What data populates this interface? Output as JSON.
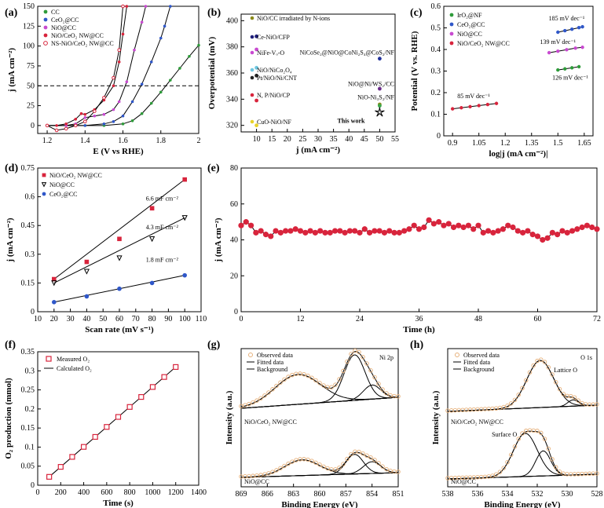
{
  "chart_data": [
    {
      "id": "a",
      "type": "line",
      "panel_label": "(a)",
      "xlabel": "E (V vs RHE)",
      "ylabel": "j (mA cm⁻²)",
      "xlim": [
        1.15,
        2.0
      ],
      "ylim": [
        -10,
        150
      ],
      "xticks": [
        1.2,
        1.4,
        1.6,
        1.8,
        2.0
      ],
      "yticks": [
        0,
        25,
        50,
        75,
        100,
        125,
        150
      ],
      "reference_line": {
        "y": 50,
        "style": "dashed",
        "color": "#3b3bd0"
      },
      "legend_position": "top-left",
      "series": [
        {
          "name": "CC",
          "color": "#2e9b3a",
          "marker": "filled-circle",
          "x": [
            1.2,
            1.3,
            1.4,
            1.5,
            1.6,
            1.65,
            1.7,
            1.75,
            1.8,
            1.85,
            1.9,
            1.95,
            2.0
          ],
          "y": [
            0,
            0,
            0,
            0,
            2,
            6,
            15,
            28,
            42,
            57,
            72,
            87,
            101
          ]
        },
        {
          "name": "CeO₂@CC",
          "color": "#2f57c9",
          "marker": "filled-circle",
          "x": [
            1.2,
            1.3,
            1.4,
            1.5,
            1.55,
            1.6,
            1.65,
            1.7,
            1.75,
            1.8,
            1.82,
            1.85
          ],
          "y": [
            0,
            0,
            0,
            2,
            5,
            12,
            30,
            52,
            80,
            110,
            125,
            150
          ]
        },
        {
          "name": "NiO@CC",
          "color": "#c84ad0",
          "marker": "filled-circle",
          "x": [
            1.2,
            1.3,
            1.35,
            1.4,
            1.45,
            1.5,
            1.55,
            1.58,
            1.62,
            1.66,
            1.7,
            1.72
          ],
          "y": [
            0,
            0,
            2,
            10,
            12,
            14,
            20,
            30,
            55,
            95,
            130,
            150
          ]
        },
        {
          "name": "NiO/CeO₂ NW@CC",
          "color": "#d8243c",
          "marker": "filled-circle",
          "x": [
            1.2,
            1.25,
            1.3,
            1.35,
            1.38,
            1.4,
            1.45,
            1.5,
            1.55,
            1.58,
            1.6,
            1.62
          ],
          "y": [
            0,
            0,
            2,
            8,
            15,
            14,
            20,
            32,
            50,
            80,
            115,
            150
          ]
        },
        {
          "name": "NS-NiO/CeO₂ NW@CC",
          "color": "#d8243c",
          "marker": "open-circle",
          "x": [
            1.2,
            1.25,
            1.3,
            1.35,
            1.4,
            1.45,
            1.5,
            1.55,
            1.58,
            1.6
          ],
          "y": [
            0,
            -6,
            -4,
            0,
            5,
            18,
            35,
            60,
            95,
            150
          ]
        }
      ]
    },
    {
      "id": "b",
      "type": "scatter",
      "panel_label": "(b)",
      "xlabel": "j (mA cm⁻²)",
      "ylabel": "Overpotential (mV)",
      "xlim": [
        5,
        55
      ],
      "ylim": [
        315,
        405
      ],
      "xticks": [
        10,
        15,
        20,
        25,
        30,
        35,
        40,
        45,
        50,
        55
      ],
      "yticks": [
        320,
        340,
        360,
        380,
        400
      ],
      "legend_position": "top-left",
      "series": [
        {
          "name": "NiO/CC irradiated by N-ions",
          "color": "#8a8a1a",
          "x": [
            50
          ],
          "y": [
            336
          ]
        },
        {
          "name": "Ce-NiO/CFP",
          "color": "#1f1f7a",
          "x": [
            10
          ],
          "y": [
            388
          ]
        },
        {
          "name": "NiFe-Vₒ-O",
          "color": "#c84ad0",
          "x": [
            10
          ],
          "y": [
            378
          ]
        },
        {
          "name": "NiO/NiCo₂O₄",
          "color": "#6fc7e0",
          "x": [
            10
          ],
          "y": [
            364
          ]
        },
        {
          "name": "Pt/NiO/Ni/CNT",
          "color": "#222222",
          "x": [
            10
          ],
          "y": [
            358
          ]
        },
        {
          "name": "N, P/NiO/CP",
          "color": "#d8243c",
          "x": [
            10
          ],
          "y": [
            339
          ]
        },
        {
          "name": "CuO-NiO/NF",
          "color": "#e8d22a",
          "x": [
            10
          ],
          "y": [
            320
          ]
        },
        {
          "name": "NiCoSe₂@NiO@CoNi₂S₄@CoS₂/NF",
          "color": "#1f2f9a",
          "x": [
            50
          ],
          "y": [
            371
          ]
        },
        {
          "name": "NiO@Ni/WS₂/CC",
          "color": "#6a2a8a",
          "x": [
            50
          ],
          "y": [
            348
          ]
        },
        {
          "name": "NiO-Ni₃S₂/NF",
          "color": "#3aa84a",
          "x": [
            50
          ],
          "y": [
            335
          ]
        },
        {
          "name": "This work",
          "color": "#d8243c",
          "marker": "star",
          "x": [
            50
          ],
          "y": [
            330
          ]
        }
      ],
      "annotations": [
        "NiCoSe₂@NiO@CoNi₂S₄@CoS₂/NF",
        "NiO@Ni/WS₂/CC",
        "NiO-Ni₃S₂/NF",
        "This work"
      ]
    },
    {
      "id": "c",
      "type": "line",
      "panel_label": "(c)",
      "xlabel": "log|j (mA cm⁻²)|",
      "ylabel": "Potential (V vs. RHE)",
      "xlim": [
        0.85,
        1.7
      ],
      "ylim": [
        0.0,
        0.6
      ],
      "xticks": [
        0.9,
        1.05,
        1.2,
        1.35,
        1.5,
        1.65
      ],
      "yticks": [
        0.0,
        0.1,
        0.2,
        0.3,
        0.4,
        0.5,
        0.6
      ],
      "legend_position": "top-left",
      "series": [
        {
          "name": "IrO₂@NF",
          "color": "#2e9b3a",
          "x": [
            1.5,
            1.54,
            1.58,
            1.62
          ],
          "y": [
            0.305,
            0.31,
            0.315,
            0.32
          ],
          "tafel": "126 mV dec⁻¹"
        },
        {
          "name": "CeO₂@CC",
          "color": "#2f57c9",
          "x": [
            1.5,
            1.54,
            1.58,
            1.62,
            1.64
          ],
          "y": [
            0.48,
            0.487,
            0.494,
            0.501,
            0.505
          ],
          "tafel": "185 mV dec⁻¹"
        },
        {
          "name": "NiO@CC",
          "color": "#c84ad0",
          "x": [
            1.45,
            1.5,
            1.55,
            1.6,
            1.64
          ],
          "y": [
            0.385,
            0.392,
            0.399,
            0.406,
            0.41
          ],
          "tafel": "139 mV dec⁻¹"
        },
        {
          "name": "NiO/CeO₂ NW@CC",
          "color": "#d8243c",
          "x": [
            0.9,
            0.95,
            1.0,
            1.05,
            1.1,
            1.15
          ],
          "y": [
            0.125,
            0.13,
            0.135,
            0.14,
            0.145,
            0.15
          ],
          "tafel": "85 mV dec⁻¹"
        }
      ]
    },
    {
      "id": "d",
      "type": "scatter",
      "panel_label": "(d)",
      "xlabel": "Scan rate (mV s⁻¹)",
      "ylabel": "j (mA cm⁻²)",
      "xlim": [
        10,
        110
      ],
      "ylim": [
        0.0,
        0.75
      ],
      "xticks": [
        10,
        20,
        30,
        40,
        50,
        60,
        70,
        80,
        90,
        100,
        110
      ],
      "yticks": [
        0.0,
        0.15,
        0.3,
        0.45,
        0.6,
        0.75
      ],
      "legend_position": "top-left",
      "series": [
        {
          "name": "NiO/CeO₂ NW@CC",
          "color": "#d8243c",
          "marker": "square",
          "x": [
            20,
            40,
            60,
            80,
            100
          ],
          "y": [
            0.17,
            0.26,
            0.38,
            0.54,
            0.69
          ],
          "label": "6.6 mF cm⁻²"
        },
        {
          "name": "NiO@CC",
          "color": "#c84ad0",
          "marker": "triangle-down",
          "x": [
            20,
            40,
            60,
            80,
            100
          ],
          "y": [
            0.15,
            0.21,
            0.28,
            0.38,
            0.49
          ],
          "label": "4.3 mF cm⁻²"
        },
        {
          "name": "CeO₂@CC",
          "color": "#2f57c9",
          "marker": "circle",
          "x": [
            20,
            40,
            60,
            80,
            100
          ],
          "y": [
            0.05,
            0.08,
            0.12,
            0.15,
            0.19
          ],
          "label": "1.8 mF cm⁻²"
        }
      ]
    },
    {
      "id": "e",
      "type": "line",
      "panel_label": "(e)",
      "xlabel": "Time (h)",
      "ylabel": "j (mA cm⁻²)",
      "xlim": [
        0,
        72
      ],
      "ylim": [
        0,
        80
      ],
      "xticks": [
        0,
        12,
        24,
        36,
        48,
        60,
        72
      ],
      "yticks": [
        0,
        20,
        40,
        60,
        80
      ],
      "series": [
        {
          "name": "",
          "color": "#d8243c",
          "marker": "filled-circle",
          "x": [
            0,
            1,
            2,
            3,
            4,
            5,
            6,
            7,
            8,
            9,
            10,
            11,
            12,
            13,
            14,
            15,
            16,
            17,
            18,
            19,
            20,
            21,
            22,
            23,
            24,
            25,
            26,
            27,
            28,
            29,
            30,
            31,
            32,
            33,
            34,
            35,
            36,
            37,
            38,
            39,
            40,
            41,
            42,
            43,
            44,
            45,
            46,
            47,
            48,
            49,
            50,
            51,
            52,
            53,
            54,
            55,
            56,
            57,
            58,
            59,
            60,
            61,
            62,
            63,
            64,
            65,
            66,
            67,
            68,
            69,
            70,
            71,
            72
          ],
          "y": [
            48,
            50,
            48,
            44,
            45,
            43,
            42,
            45,
            44,
            45,
            45,
            46,
            45,
            44,
            45,
            44,
            45,
            44,
            44,
            45,
            45,
            44,
            45,
            45,
            44,
            46,
            44,
            45,
            45,
            44,
            45,
            44,
            44,
            45,
            46,
            48,
            46,
            47,
            51,
            49,
            50,
            48,
            49,
            47,
            48,
            47,
            48,
            46,
            48,
            44,
            45,
            44,
            45,
            46,
            48,
            47,
            45,
            44,
            45,
            43,
            42,
            40,
            41,
            44,
            43,
            45,
            44,
            45,
            46,
            47,
            48,
            47,
            46
          ]
        }
      ]
    },
    {
      "id": "f",
      "type": "line",
      "panel_label": "(f)",
      "xlabel": "Time (s)",
      "ylabel": "O₂ production (mmol)",
      "xlim": [
        0,
        1400
      ],
      "ylim": [
        0.0,
        0.35
      ],
      "xticks": [
        0,
        200,
        400,
        600,
        800,
        1000,
        1200,
        1400
      ],
      "yticks": [
        0.0,
        0.05,
        0.1,
        0.15,
        0.2,
        0.25,
        0.3,
        0.35
      ],
      "legend_position": "top-left",
      "series": [
        {
          "name": "Measured O₂",
          "color": "#d8243c",
          "marker": "open-square",
          "x": [
            100,
            200,
            300,
            400,
            500,
            600,
            700,
            800,
            900,
            1000,
            1100,
            1200
          ],
          "y": [
            0.022,
            0.045,
            0.068,
            0.09,
            0.112,
            0.135,
            0.158,
            0.18,
            0.202,
            0.225,
            0.248,
            0.27
          ]
        },
        {
          "name": "Calculated O₂",
          "color": "#d8243c",
          "marker": "none",
          "x": [
            100,
            1200
          ],
          "y": [
            0.022,
            0.31
          ]
        }
      ]
    },
    {
      "id": "g",
      "type": "area",
      "panel_label": "(g)",
      "xlabel": "Binding Energy (eV)",
      "ylabel": "Intensity (a.u.)",
      "xlim": [
        869,
        851
      ],
      "xticks": [
        869,
        866,
        863,
        860,
        857,
        854,
        851
      ],
      "title_right": "Ni 2p",
      "legend_entries": [
        "Observed data",
        "Fitted data",
        "Background"
      ],
      "sample_labels": [
        "NiO/CeO₂ NW@CC",
        "NiO@CC"
      ]
    },
    {
      "id": "h",
      "type": "area",
      "panel_label": "(h)",
      "xlabel": "Binding Energy (eV)",
      "ylabel": "Intensity (a.u.)",
      "xlim": [
        538,
        528
      ],
      "xticks": [
        538,
        536,
        534,
        532,
        530,
        528
      ],
      "title_right": "O 1s",
      "legend_entries": [
        "Observed data",
        "Fitted data",
        "Background"
      ],
      "annotations": [
        "Lattice O",
        "Surface O"
      ],
      "sample_labels": [
        "NiO/CeO₂ NW@CC",
        "NiO@CC"
      ]
    }
  ]
}
